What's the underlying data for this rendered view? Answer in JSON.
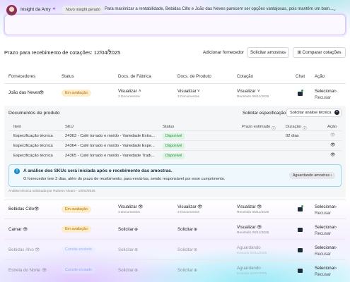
{
  "insight": {
    "name": "Insight da Amy",
    "badge": "Novo insight gerado",
    "text": "Para maximizar a rentabilidade, Bebidas Cillo e João das Neves parecem ser opções vantajosas, pois mantêm um bom..."
  },
  "toolbar": {
    "deadline": "Prazo para recebimento de cotações: 12/04/2025",
    "add_supplier": "Adicionar fornecedor",
    "request_samples": "Solicitar amostras",
    "compare_quotes": "Comparar cotações"
  },
  "table": {
    "headers": [
      "Fornecedores",
      "Status",
      "Docs. de Fábrica",
      "Docs. de Produto",
      "Cotação",
      "Chat",
      "Ação"
    ],
    "rows": [
      {
        "supplier": "João das Neves",
        "status": "Em avaliação",
        "factory": "Visualizar",
        "factory_sub": "3 Documentos",
        "product": "Visualizar",
        "product_sub": "3 Documentos",
        "quote": "Visualizar",
        "quote_sub": "Recebido 06/11/2025",
        "action": "Selecionar",
        "action2": "Recusar"
      },
      {
        "supplier": "Bebidas Cillo",
        "status": "Em avaliação",
        "factory": "Visualizar",
        "factory_sub": "3 Documentos",
        "product": "Visualizar",
        "product_sub": "3 Documentos",
        "quote": "Visualizar",
        "quote_sub": "Recebido 06/11/2025",
        "action": "Selecionar",
        "action2": "Recusar"
      },
      {
        "supplier": "Camar",
        "status": "Em avaliação",
        "factory": "Solicitar",
        "factory_sub": "",
        "product": "Solicitar",
        "product_sub": "",
        "quote": "Visualizar",
        "quote_sub": "Recebido 06/11/2025",
        "action": "Selecionar",
        "action2": "Recusar"
      },
      {
        "supplier": "Bebidas Alvo",
        "status": "Convite enviado",
        "factory": "Solicitar",
        "factory_sub": "",
        "product": "Solicitar",
        "product_sub": "",
        "quote": "Aguardando",
        "quote_sub": "Enviado 06/11/2025",
        "action": "Selecionar",
        "action2": "Recusar"
      },
      {
        "supplier": "Estrela do Norte",
        "status": "Convite enviado",
        "factory": "Solicitar",
        "factory_sub": "",
        "product": "Solicitar",
        "product_sub": "",
        "quote": "Aguardando",
        "quote_sub": "Enviado 06/11/2025",
        "action": "Selecionar",
        "action2": "Recusar"
      }
    ]
  },
  "panel": {
    "title": "Documentos de produto",
    "request_spec": "Solicitar especificação",
    "request_analysis": "Solicitar análise técnica",
    "headers": [
      "Item",
      "SKU",
      "Status",
      "Prazo estimado",
      "Duração",
      "Ação"
    ],
    "rows": [
      {
        "item": "Especificação técnica",
        "sku": "24363 - Café torrado e moído - Variedade Extra...",
        "status": "Disponível",
        "deadline": "",
        "duration": "02 dias"
      },
      {
        "item": "Especificação técnica",
        "sku": "24364 - Café torrado e moído - Variedade Espe...",
        "status": "Disponível",
        "deadline": "",
        "duration": ""
      },
      {
        "item": "Especificação técnica",
        "sku": "24365 - Café torrado e moído - Variedade Tradi...",
        "status": "Disponível",
        "deadline": "",
        "duration": ""
      }
    ],
    "alert_title": "A análise dos SKUs será iniciada após o recebimento das amostras.",
    "alert_text": "O fornecedor tem 3 dias, além do prazo de recebimento, para enviá-las, sendo responsável por esse cumprimento.",
    "alert_badge": "Aguardando amostras",
    "footnote": "Análise técnica solicitada por Rubens Alvaro - 10/04/2025"
  },
  "colors": {
    "accent_purple": "#b06bf0",
    "eval_badge": "#fdecc8",
    "sent_badge": "#e3ecff",
    "ok_badge": "#dff5e4",
    "alert_bg": "#eef8fd"
  }
}
